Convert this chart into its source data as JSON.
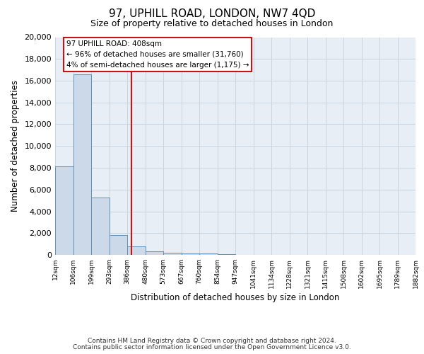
{
  "title": "97, UPHILL ROAD, LONDON, NW7 4QD",
  "subtitle": "Size of property relative to detached houses in London",
  "xlabel": "Distribution of detached houses by size in London",
  "ylabel": "Number of detached properties",
  "footer_line1": "Contains HM Land Registry data © Crown copyright and database right 2024.",
  "footer_line2": "Contains public sector information licensed under the Open Government Licence v3.0.",
  "bin_edges": [
    12,
    106,
    199,
    293,
    386,
    480,
    573,
    667,
    760,
    854,
    947,
    1041,
    1134,
    1228,
    1321,
    1415,
    1508,
    1602,
    1695,
    1789,
    1882
  ],
  "bin_labels": [
    "12sqm",
    "106sqm",
    "199sqm",
    "293sqm",
    "386sqm",
    "480sqm",
    "573sqm",
    "667sqm",
    "760sqm",
    "854sqm",
    "947sqm",
    "1041sqm",
    "1134sqm",
    "1228sqm",
    "1321sqm",
    "1415sqm",
    "1508sqm",
    "1602sqm",
    "1695sqm",
    "1789sqm",
    "1882sqm"
  ],
  "bar_heights": [
    8100,
    16600,
    5300,
    1800,
    800,
    300,
    200,
    100,
    100,
    50,
    0,
    0,
    0,
    0,
    0,
    0,
    0,
    0,
    0,
    0
  ],
  "bar_color": "#ccd9e8",
  "bar_edge_color": "#6090b8",
  "grid_color": "#c8d4e0",
  "bg_color": "#e8eef6",
  "vline_x": 408,
  "vline_color": "#cc1111",
  "ann_line1": "97 UPHILL ROAD: 408sqm",
  "ann_line2": "← 96% of detached houses are smaller (31,760)",
  "ann_line3": "4% of semi-detached houses are larger (1,175) →",
  "ann_box_fc": "#ffffff",
  "ann_box_ec": "#cc1111",
  "ylim_max": 20000,
  "yticks": [
    0,
    2000,
    4000,
    6000,
    8000,
    10000,
    12000,
    14000,
    16000,
    18000,
    20000
  ]
}
